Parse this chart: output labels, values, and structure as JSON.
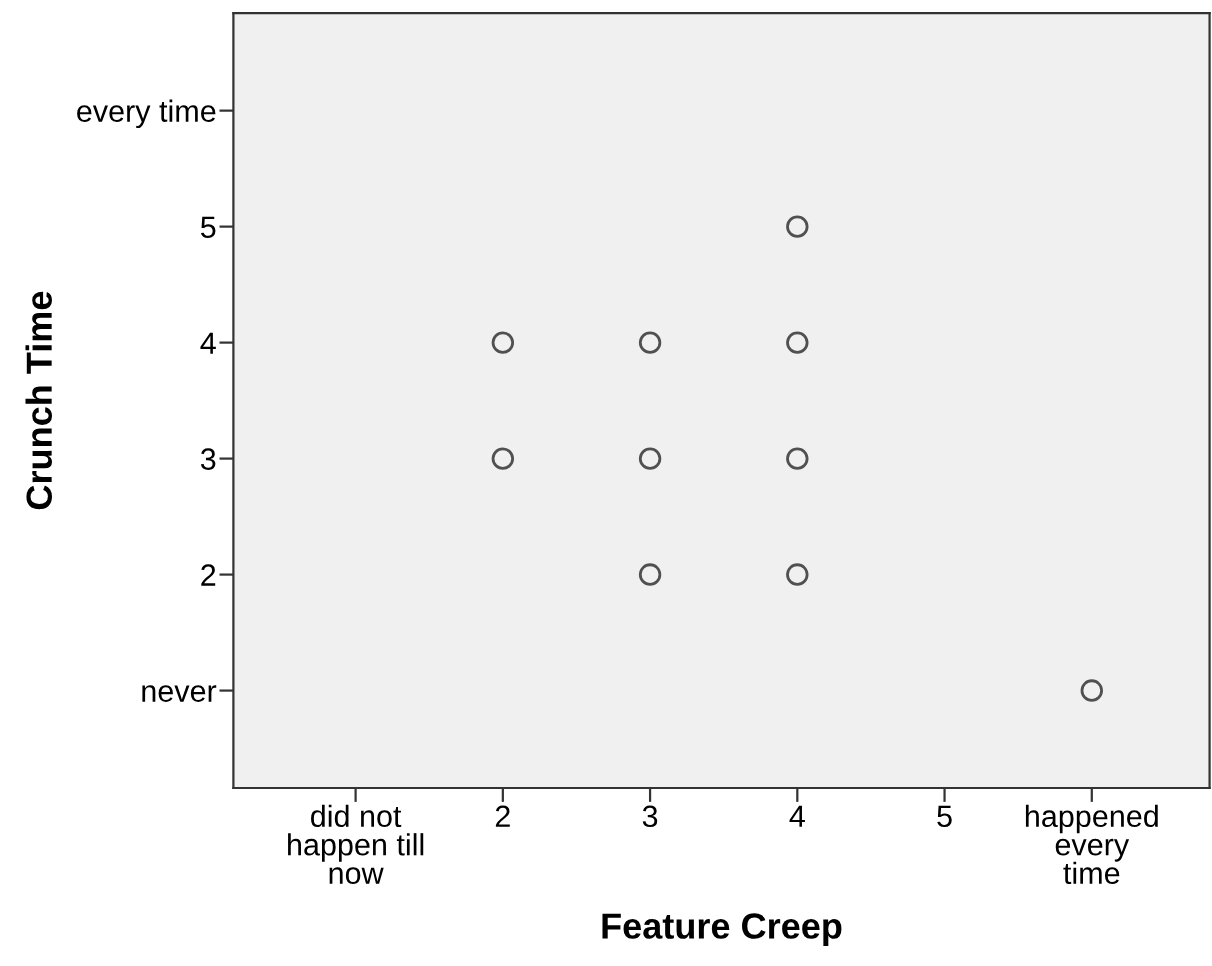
{
  "chart_data": {
    "type": "scatter",
    "xlabel": "Feature Creep",
    "ylabel": "Crunch Time",
    "x": [
      2,
      2,
      3,
      3,
      3,
      4,
      4,
      4,
      4,
      6
    ],
    "series": [
      {
        "color": "#505050",
        "values": [
          4,
          3,
          4,
          3,
          2,
          5,
          4,
          3,
          2,
          1
        ]
      }
    ],
    "xlim": [
      0.17,
      6.8
    ],
    "ylim": [
      0.16,
      6.84
    ],
    "xticks": [
      {
        "value": 1,
        "label": "did not\nhappen till\nnow"
      },
      2,
      3,
      4,
      5,
      {
        "value": 6,
        "label": "happened\nevery\ntime"
      }
    ],
    "yticks": [
      {
        "value": 1,
        "label": "never"
      },
      2,
      3,
      4,
      5,
      {
        "value": 6,
        "label": "every time"
      }
    ],
    "marker": "circle",
    "grid": false,
    "legend": false
  }
}
